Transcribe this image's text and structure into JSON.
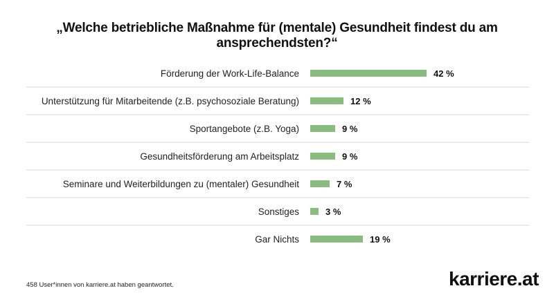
{
  "title": "„Welche betriebliche Maßnahme für (mentale) Gesundheit findest du am ansprechendsten?“",
  "footnote": "458 User*innen von karriere.at haben geantwortet.",
  "logo_text": "karriere.at",
  "colors": {
    "bar": "#88bd7f",
    "divider": "#d4d4d4"
  },
  "chart_data": {
    "type": "bar",
    "orientation": "horizontal",
    "categories": [
      "Förderung der Work-Life-Balance",
      "Unterstützung für Mitarbeitende (z.B. psychosoziale Beratung)",
      "Sportangebote (z.B. Yoga)",
      "Gesundheitsförderung am Arbeitsplatz",
      "Seminare und Weiterbildungen zu (mentaler) Gesundheit",
      "Sonstiges",
      "Gar Nichts"
    ],
    "values": [
      42,
      12,
      9,
      9,
      7,
      3,
      19
    ],
    "value_labels": [
      "42 %",
      "12 %",
      "9 %",
      "9 %",
      "7 %",
      "3 %",
      "19 %"
    ],
    "xlabel": "",
    "ylabel": "",
    "xlim": [
      0,
      42
    ],
    "grid": false,
    "legend": "none"
  }
}
